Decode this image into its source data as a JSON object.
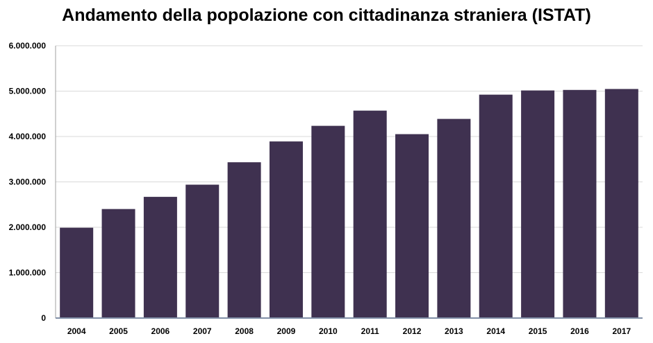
{
  "chart_data": {
    "type": "bar",
    "title": "Andamento della popolazione con cittadinanza straniera (ISTAT)",
    "xlabel": "",
    "ylabel": "",
    "categories": [
      "2004",
      "2005",
      "2006",
      "2007",
      "2008",
      "2009",
      "2010",
      "2011",
      "2012",
      "2013",
      "2014",
      "2015",
      "2016",
      "2017"
    ],
    "values": [
      1990159,
      2402157,
      2670514,
      2938922,
      3432651,
      3891295,
      4235059,
      4570317,
      4052081,
      4387721,
      4922085,
      5014437,
      5026153,
      5047028
    ],
    "ylim": [
      0,
      6000000
    ],
    "yticks": [
      "0",
      "1.000.000",
      "2.000.000",
      "3.000.000",
      "4.000.000",
      "5.000.000",
      "6.000.000"
    ],
    "grid": true,
    "legend": "none",
    "bar_color": "#3f3150",
    "grid_color": "#d9d9d9",
    "axis_color": "#7f8ea6"
  }
}
